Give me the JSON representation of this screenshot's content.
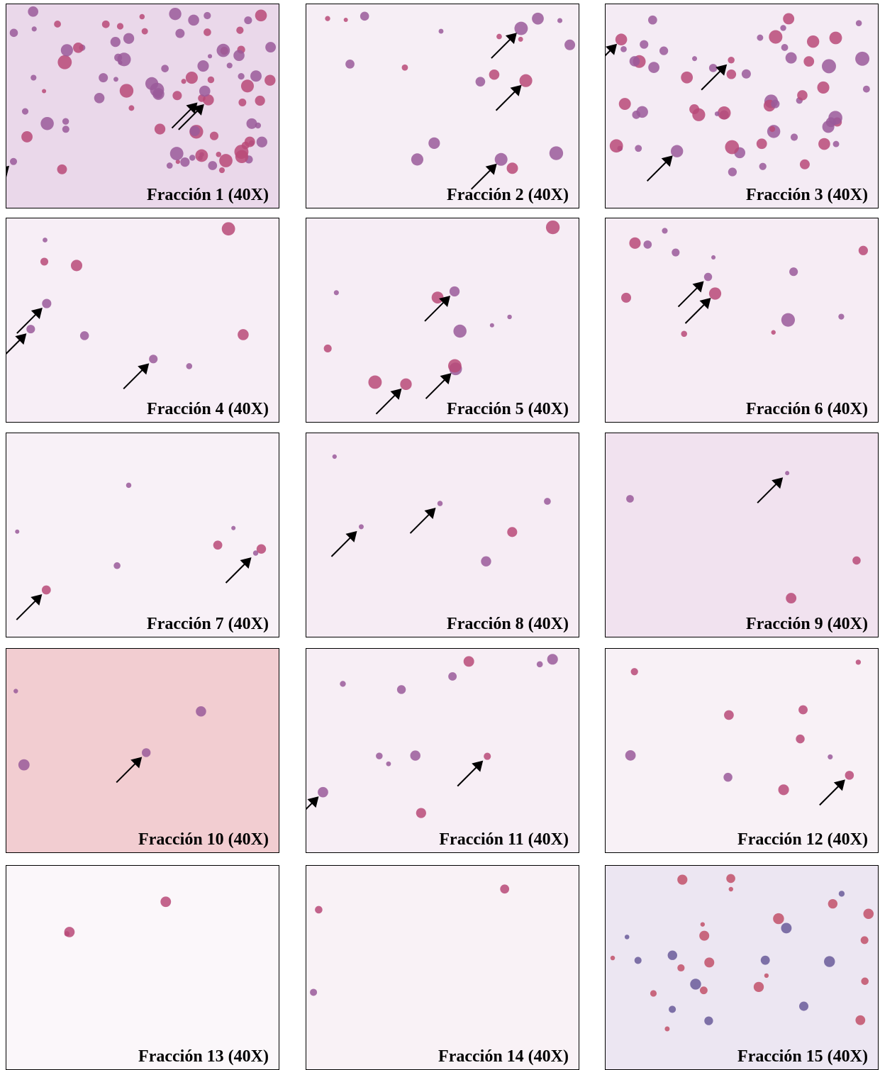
{
  "panels": [
    {
      "label": "Fracción 1 (40X)"
    },
    {
      "label": "Fracción 2 (40X)"
    },
    {
      "label": "Fracción 3 (40X)"
    },
    {
      "label": "Fracción 4 (40X)"
    },
    {
      "label": "Fracción 5 (40X)"
    },
    {
      "label": "Fracción 6 (40X)"
    },
    {
      "label": "Fracción 7 (40X)"
    },
    {
      "label": "Fracción 8 (40X)"
    },
    {
      "label": "Fracción 9 (40X)"
    },
    {
      "label": "Fracción 10 (40X)"
    },
    {
      "label": "Fracción 11 (40X)"
    },
    {
      "label": "Fracción 12 (40X)"
    },
    {
      "label": "Fracción 13 (40X)"
    },
    {
      "label": "Fracción 14 (40X)"
    },
    {
      "label": "Fracción 15 (40X)"
    }
  ]
}
